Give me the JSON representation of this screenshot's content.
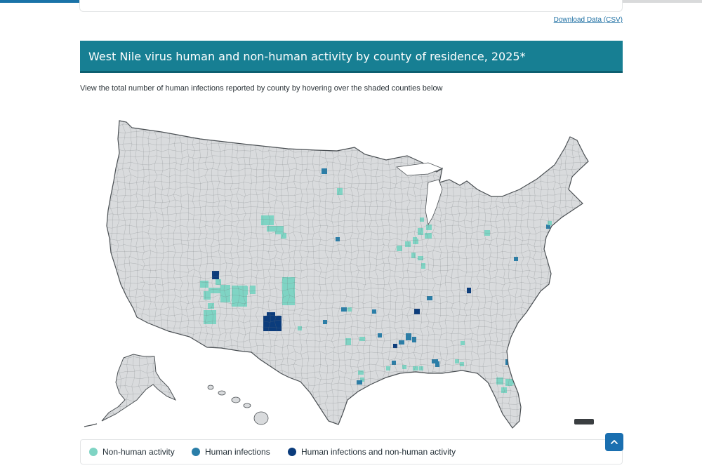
{
  "progress": {
    "fraction": 0.465
  },
  "download_link": "Download Data (CSV)",
  "banner_title": "West Nile virus human and non-human activity by county of residence, 2025*",
  "instruction": "View the total number of human infections reported by county by hovering over the shaded counties below",
  "map": {
    "base_fill": "#d9dbdd",
    "border_color": "#4a4f53",
    "categories": {
      "nonhuman": "#7fd4c4",
      "human": "#2a7ea8",
      "both": "#0b3c7c"
    },
    "shaded_counties": [
      [
        "nonhuman",
        175,
        240,
        12,
        10
      ],
      [
        "nonhuman",
        180,
        255,
        10,
        12
      ],
      [
        "nonhuman",
        186,
        272,
        9,
        8
      ],
      [
        "nonhuman",
        197,
        238,
        8,
        8
      ],
      [
        "both",
        192,
        226,
        10,
        12
      ],
      [
        "nonhuman",
        187,
        250,
        8,
        8
      ],
      [
        "nonhuman",
        194,
        250,
        12,
        8
      ],
      [
        "nonhuman",
        204,
        246,
        14,
        25
      ],
      [
        "nonhuman",
        180,
        282,
        18,
        20
      ],
      [
        "nonhuman",
        220,
        247,
        22,
        30
      ],
      [
        "nonhuman",
        235,
        248,
        8,
        12
      ],
      [
        "nonhuman",
        246,
        247,
        8,
        12
      ],
      [
        "both",
        265,
        290,
        26,
        22
      ],
      [
        "both",
        270,
        285,
        12,
        10
      ],
      [
        "nonhuman",
        292,
        235,
        18,
        40
      ],
      [
        "nonhuman",
        298,
        255,
        10,
        12
      ],
      [
        "nonhuman",
        262,
        147,
        18,
        14
      ],
      [
        "nonhuman",
        270,
        162,
        14,
        8
      ],
      [
        "nonhuman",
        282,
        162,
        12,
        12
      ],
      [
        "nonhuman",
        290,
        172,
        8,
        8
      ],
      [
        "human",
        348,
        80,
        8,
        8
      ],
      [
        "nonhuman",
        370,
        108,
        8,
        10
      ],
      [
        "human",
        368,
        178,
        6,
        6
      ],
      [
        "human",
        376,
        278,
        8,
        6
      ],
      [
        "nonhuman",
        385,
        278,
        6,
        6
      ],
      [
        "nonhuman",
        382,
        322,
        8,
        10
      ],
      [
        "nonhuman",
        314,
        305,
        6,
        6
      ],
      [
        "human",
        350,
        296,
        6,
        6
      ],
      [
        "nonhuman",
        402,
        320,
        8,
        6
      ],
      [
        "nonhuman",
        455,
        190,
        8,
        8
      ],
      [
        "nonhuman",
        467,
        184,
        8,
        8
      ],
      [
        "nonhuman",
        478,
        180,
        8,
        8
      ],
      [
        "nonhuman",
        485,
        165,
        8,
        10
      ],
      [
        "nonhuman",
        497,
        160,
        8,
        8
      ],
      [
        "nonhuman",
        495,
        172,
        10,
        8
      ],
      [
        "nonhuman",
        476,
        200,
        6,
        8
      ],
      [
        "nonhuman",
        485,
        205,
        8,
        6
      ],
      [
        "nonhuman",
        490,
        215,
        6,
        8
      ],
      [
        "nonhuman",
        478,
        178,
        6,
        6
      ],
      [
        "nonhuman",
        488,
        150,
        6,
        6
      ],
      [
        "human",
        480,
        280,
        6,
        8
      ],
      [
        "both",
        480,
        280,
        8,
        8
      ],
      [
        "both",
        450,
        330,
        6,
        6
      ],
      [
        "human",
        458,
        325,
        8,
        6
      ],
      [
        "human",
        477,
        320,
        6,
        8
      ],
      [
        "human",
        468,
        315,
        8,
        10
      ],
      [
        "human",
        420,
        281,
        6,
        6
      ],
      [
        "human",
        428,
        315,
        6,
        6
      ],
      [
        "both",
        555,
        250,
        6,
        8
      ],
      [
        "human",
        498,
        262,
        8,
        6
      ],
      [
        "human",
        510,
        355,
        6,
        8
      ],
      [
        "human",
        505,
        352,
        6,
        6
      ],
      [
        "human",
        448,
        354,
        6,
        6
      ],
      [
        "nonhuman",
        478,
        362,
        8,
        6
      ],
      [
        "nonhuman",
        487,
        362,
        6,
        6
      ],
      [
        "nonhuman",
        472,
        370,
        8,
        6
      ],
      [
        "nonhuman",
        463,
        360,
        6,
        6
      ],
      [
        "nonhuman",
        440,
        362,
        6,
        6
      ],
      [
        "nonhuman",
        400,
        368,
        8,
        6
      ],
      [
        "nonhuman",
        403,
        378,
        6,
        6
      ],
      [
        "human",
        398,
        382,
        8,
        6
      ],
      [
        "nonhuman",
        538,
        352,
        6,
        6
      ],
      [
        "nonhuman",
        545,
        356,
        6,
        6
      ],
      [
        "human",
        508,
        352,
        6,
        6
      ],
      [
        "nonhuman",
        597,
        378,
        10,
        10
      ],
      [
        "nonhuman",
        610,
        380,
        10,
        10
      ],
      [
        "nonhuman",
        604,
        392,
        8,
        8
      ],
      [
        "nonhuman",
        620,
        380,
        6,
        8
      ],
      [
        "human",
        610,
        352,
        6,
        8
      ],
      [
        "nonhuman",
        631,
        408,
        8,
        8
      ],
      [
        "nonhuman",
        580,
        168,
        8,
        8
      ],
      [
        "human",
        622,
        206,
        6,
        6
      ],
      [
        "human",
        668,
        160,
        6,
        6
      ],
      [
        "nonhuman",
        670,
        155,
        6,
        6
      ],
      [
        "nonhuman",
        546,
        326,
        6,
        6
      ],
      [
        "nonhuman",
        482,
        420,
        6,
        6
      ]
    ]
  },
  "legend": [
    {
      "label": "Non-human activity",
      "color": "#7fd4c4"
    },
    {
      "label": "Human infections",
      "color": "#2a7ea8"
    },
    {
      "label": "Human infections and non-human activity",
      "color": "#0b3c7c"
    }
  ],
  "back_to_top_icon": "chevron-up-icon"
}
